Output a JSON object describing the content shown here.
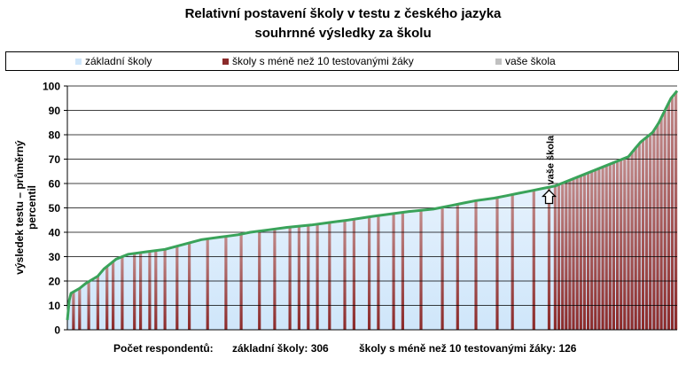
{
  "title_line1": "Relativní postavení školy v testu z českého jazyka",
  "title_line2": "souhrnné výsledky za školu",
  "legend": {
    "basic": "základní školy",
    "small": "školy s méně než 10 testovanými žáky",
    "yours": "vaše škola"
  },
  "colors": {
    "basic_fill": "#cfe6fa",
    "small_bar": "#8b2a2a",
    "line": "#3aa35a",
    "grid": "#000000"
  },
  "footer": {
    "label": "Počet respondentů:",
    "basic": "základní školy: 306",
    "small": "školy s méně než 10 testovanými žáky: 126"
  },
  "chart_data": {
    "type": "area",
    "ylabel": "výsledek testu – průměrný percentil",
    "ylim": [
      0,
      100
    ],
    "yticks": [
      0,
      10,
      20,
      30,
      40,
      50,
      60,
      70,
      80,
      90,
      100
    ],
    "grid": true,
    "legend_position": "top",
    "curve_points": [
      [
        0,
        4
      ],
      [
        0.3,
        12
      ],
      [
        0.6,
        15
      ],
      [
        2,
        17
      ],
      [
        3,
        19
      ],
      [
        5,
        22
      ],
      [
        6,
        25
      ],
      [
        7,
        27
      ],
      [
        8,
        29
      ],
      [
        10,
        31
      ],
      [
        13,
        32
      ],
      [
        16,
        33
      ],
      [
        19,
        35
      ],
      [
        22,
        37
      ],
      [
        25,
        38
      ],
      [
        28,
        39
      ],
      [
        30,
        40
      ],
      [
        33,
        41
      ],
      [
        36,
        42
      ],
      [
        40,
        43
      ],
      [
        43,
        44
      ],
      [
        46,
        45
      ],
      [
        50,
        46.5
      ],
      [
        53,
        47.5
      ],
      [
        56,
        48.5
      ],
      [
        60,
        49.5
      ],
      [
        63,
        51
      ],
      [
        65,
        52
      ],
      [
        67,
        53
      ],
      [
        70,
        54
      ],
      [
        72,
        55
      ],
      [
        74,
        56
      ],
      [
        76,
        57
      ],
      [
        78,
        58
      ],
      [
        80,
        59
      ],
      [
        81,
        60
      ],
      [
        82,
        61
      ],
      [
        84,
        63
      ],
      [
        86,
        65
      ],
      [
        88,
        67
      ],
      [
        90,
        69
      ],
      [
        92,
        71
      ],
      [
        93,
        74
      ],
      [
        94,
        77
      ],
      [
        95,
        79
      ],
      [
        96,
        81
      ],
      [
        97,
        85
      ],
      [
        98,
        90
      ],
      [
        99,
        95
      ],
      [
        100,
        98
      ]
    ],
    "small_school_positions": [
      1,
      2,
      3.5,
      5,
      6.5,
      7.5,
      9,
      11,
      12,
      13.5,
      14.5,
      16,
      18,
      20,
      23,
      26,
      28.5,
      31.5,
      34,
      36.5,
      38,
      39.5,
      41,
      43,
      45.5,
      47,
      49.5,
      51,
      53.5,
      55,
      58,
      61.5,
      64,
      67,
      70.5,
      73,
      76.5,
      79,
      80,
      80.6,
      81.2,
      81.8,
      82.4,
      83,
      83.6,
      84.2,
      84.8,
      85.4,
      86,
      86.6,
      87.2,
      87.8,
      88.4,
      89,
      89.6,
      90.2,
      90.8,
      91.4,
      92,
      92.6,
      93.2,
      93.8,
      94.4,
      95,
      95.6,
      96.2,
      96.8,
      97.4,
      98,
      98.6,
      99.2,
      99.8
    ],
    "your_school": {
      "label": "vaše škola",
      "position": 79,
      "value": 58
    }
  }
}
